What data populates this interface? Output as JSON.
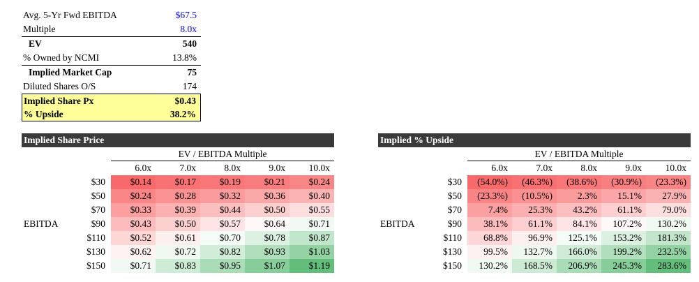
{
  "summary": {
    "fwd_ebitda": {
      "label": "Avg. 5-Yr Fwd EBITDA",
      "value": "$67.5"
    },
    "multiple": {
      "label": "Multiple",
      "value": "8.0x"
    },
    "ev": {
      "label": "EV",
      "value": "540"
    },
    "owned": {
      "label": "% Owned by NCMI",
      "value": "13.8%"
    },
    "mcap": {
      "label": "Implied Market Cap",
      "value": "75"
    },
    "shares": {
      "label": "Diluted Shares O/S",
      "value": "174"
    },
    "share_px": {
      "label": "Implied Share Px",
      "value": "$0.43"
    },
    "upside": {
      "label": "% Upside",
      "value": "38.2%"
    }
  },
  "colors": {
    "input_blue": "#0000ff",
    "highlight": "#ffff99",
    "header_bg": "#3a3a3a",
    "low": "#f8696b",
    "mid": "#ffffff",
    "high": "#63be7b"
  },
  "price_table": {
    "title": "Implied Share Price",
    "header": "EV / EBITDA Multiple",
    "row_label": "EBITDA",
    "columns": [
      "6.0x",
      "7.0x",
      "8.0x",
      "9.0x",
      "10.0x"
    ],
    "rows": [
      {
        "ebitda": "$30",
        "cells": [
          "$0.14",
          "$0.17",
          "$0.19",
          "$0.21",
          "$0.24"
        ],
        "nums": [
          0.14,
          0.17,
          0.19,
          0.21,
          0.24
        ]
      },
      {
        "ebitda": "$50",
        "cells": [
          "$0.24",
          "$0.28",
          "$0.32",
          "$0.36",
          "$0.40"
        ],
        "nums": [
          0.24,
          0.28,
          0.32,
          0.36,
          0.4
        ]
      },
      {
        "ebitda": "$70",
        "cells": [
          "$0.33",
          "$0.39",
          "$0.44",
          "$0.50",
          "$0.55"
        ],
        "nums": [
          0.33,
          0.39,
          0.44,
          0.5,
          0.55
        ]
      },
      {
        "ebitda": "$90",
        "cells": [
          "$0.43",
          "$0.50",
          "$0.57",
          "$0.64",
          "$0.71"
        ],
        "nums": [
          0.43,
          0.5,
          0.57,
          0.64,
          0.71
        ]
      },
      {
        "ebitda": "$110",
        "cells": [
          "$0.52",
          "$0.61",
          "$0.70",
          "$0.78",
          "$0.87"
        ],
        "nums": [
          0.52,
          0.61,
          0.7,
          0.78,
          0.87
        ]
      },
      {
        "ebitda": "$130",
        "cells": [
          "$0.62",
          "$0.72",
          "$0.82",
          "$0.93",
          "$1.03"
        ],
        "nums": [
          0.62,
          0.72,
          0.82,
          0.93,
          1.03
        ]
      },
      {
        "ebitda": "$150",
        "cells": [
          "$0.71",
          "$0.83",
          "$0.95",
          "$1.07",
          "$1.19"
        ],
        "nums": [
          0.71,
          0.83,
          0.95,
          1.07,
          1.19
        ]
      }
    ]
  },
  "upside_table": {
    "title": "Implied % Upside",
    "header": "EV / EBITDA Multiple",
    "row_label": "EBITDA",
    "columns": [
      "6.0x",
      "7.0x",
      "8.0x",
      "9.0x",
      "10.0x"
    ],
    "rows": [
      {
        "ebitda": "$30",
        "cells": [
          "(54.0%)",
          "(46.3%)",
          "(38.6%)",
          "(30.9%)",
          "(23.3%)"
        ],
        "nums": [
          -54.0,
          -46.3,
          -38.6,
          -30.9,
          -23.3
        ]
      },
      {
        "ebitda": "$50",
        "cells": [
          "(23.3%)",
          "(10.5%)",
          "2.3%",
          "15.1%",
          "27.9%"
        ],
        "nums": [
          -23.3,
          -10.5,
          2.3,
          15.1,
          27.9
        ]
      },
      {
        "ebitda": "$70",
        "cells": [
          "7.4%",
          "25.3%",
          "43.2%",
          "61.1%",
          "79.0%"
        ],
        "nums": [
          7.4,
          25.3,
          43.2,
          61.1,
          79.0
        ]
      },
      {
        "ebitda": "$90",
        "cells": [
          "38.1%",
          "61.1%",
          "84.1%",
          "107.2%",
          "130.2%"
        ],
        "nums": [
          38.1,
          61.1,
          84.1,
          107.2,
          130.2
        ]
      },
      {
        "ebitda": "$110",
        "cells": [
          "68.8%",
          "96.9%",
          "125.1%",
          "153.2%",
          "181.3%"
        ],
        "nums": [
          68.8,
          96.9,
          125.1,
          153.2,
          181.3
        ]
      },
      {
        "ebitda": "$130",
        "cells": [
          "99.5%",
          "132.7%",
          "166.0%",
          "199.2%",
          "232.5%"
        ],
        "nums": [
          99.5,
          132.7,
          166.0,
          199.2,
          232.5
        ]
      },
      {
        "ebitda": "$150",
        "cells": [
          "130.2%",
          "168.5%",
          "206.9%",
          "245.3%",
          "283.6%"
        ],
        "nums": [
          130.2,
          168.5,
          206.9,
          245.3,
          283.6
        ]
      }
    ]
  }
}
